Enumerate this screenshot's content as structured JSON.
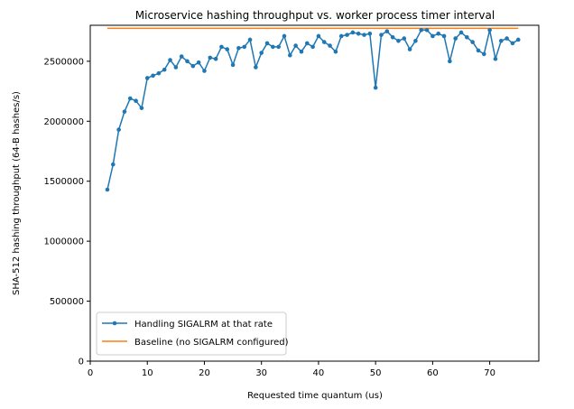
{
  "chart_data": {
    "type": "line",
    "title": "Microservice hashing throughput vs. worker process timer interval",
    "xlabel": "Requested time quantum (us)",
    "ylabel": "SHA-512 hashing throughput (64-B hashes/s)",
    "xlim": [
      0,
      78.6
    ],
    "ylim": [
      0,
      2800000
    ],
    "xticks": [
      0,
      10,
      20,
      30,
      40,
      50,
      60,
      70
    ],
    "yticks": [
      0,
      500000,
      1000000,
      1500000,
      2000000,
      2500000
    ],
    "grid": false,
    "legend_position": "lower-left",
    "series": [
      {
        "name": "Handling SIGALRM at that rate",
        "color": "#1f77b4",
        "marker": "dot",
        "x": [
          3,
          4,
          5,
          6,
          7,
          8,
          9,
          10,
          11,
          12,
          13,
          14,
          15,
          16,
          17,
          18,
          19,
          20,
          21,
          22,
          23,
          24,
          25,
          26,
          27,
          28,
          29,
          30,
          31,
          32,
          33,
          34,
          35,
          36,
          37,
          38,
          39,
          40,
          41,
          42,
          43,
          44,
          45,
          46,
          47,
          48,
          49,
          50,
          51,
          52,
          53,
          54,
          55,
          56,
          57,
          58,
          59,
          60,
          61,
          62,
          63,
          64,
          65,
          66,
          67,
          68,
          69,
          70,
          71,
          72,
          73,
          74,
          75
        ],
        "y": [
          1430000,
          1640000,
          1930000,
          2080000,
          2190000,
          2170000,
          2110000,
          2360000,
          2380000,
          2400000,
          2430000,
          2510000,
          2450000,
          2540000,
          2500000,
          2460000,
          2490000,
          2420000,
          2530000,
          2520000,
          2620000,
          2600000,
          2470000,
          2610000,
          2620000,
          2680000,
          2450000,
          2570000,
          2650000,
          2620000,
          2620000,
          2710000,
          2550000,
          2630000,
          2580000,
          2650000,
          2620000,
          2710000,
          2660000,
          2630000,
          2580000,
          2710000,
          2720000,
          2740000,
          2730000,
          2720000,
          2730000,
          2280000,
          2720000,
          2750000,
          2700000,
          2670000,
          2690000,
          2600000,
          2670000,
          2760000,
          2760000,
          2710000,
          2730000,
          2710000,
          2500000,
          2690000,
          2740000,
          2700000,
          2660000,
          2590000,
          2560000,
          2760000,
          2520000,
          2670000,
          2690000,
          2650000,
          2680000
        ]
      },
      {
        "name": "Baseline (no SIGALRM configured)",
        "color": "#ff7f0e",
        "marker": "none",
        "x": [
          3,
          75
        ],
        "y": [
          2775000,
          2775000
        ]
      }
    ]
  }
}
